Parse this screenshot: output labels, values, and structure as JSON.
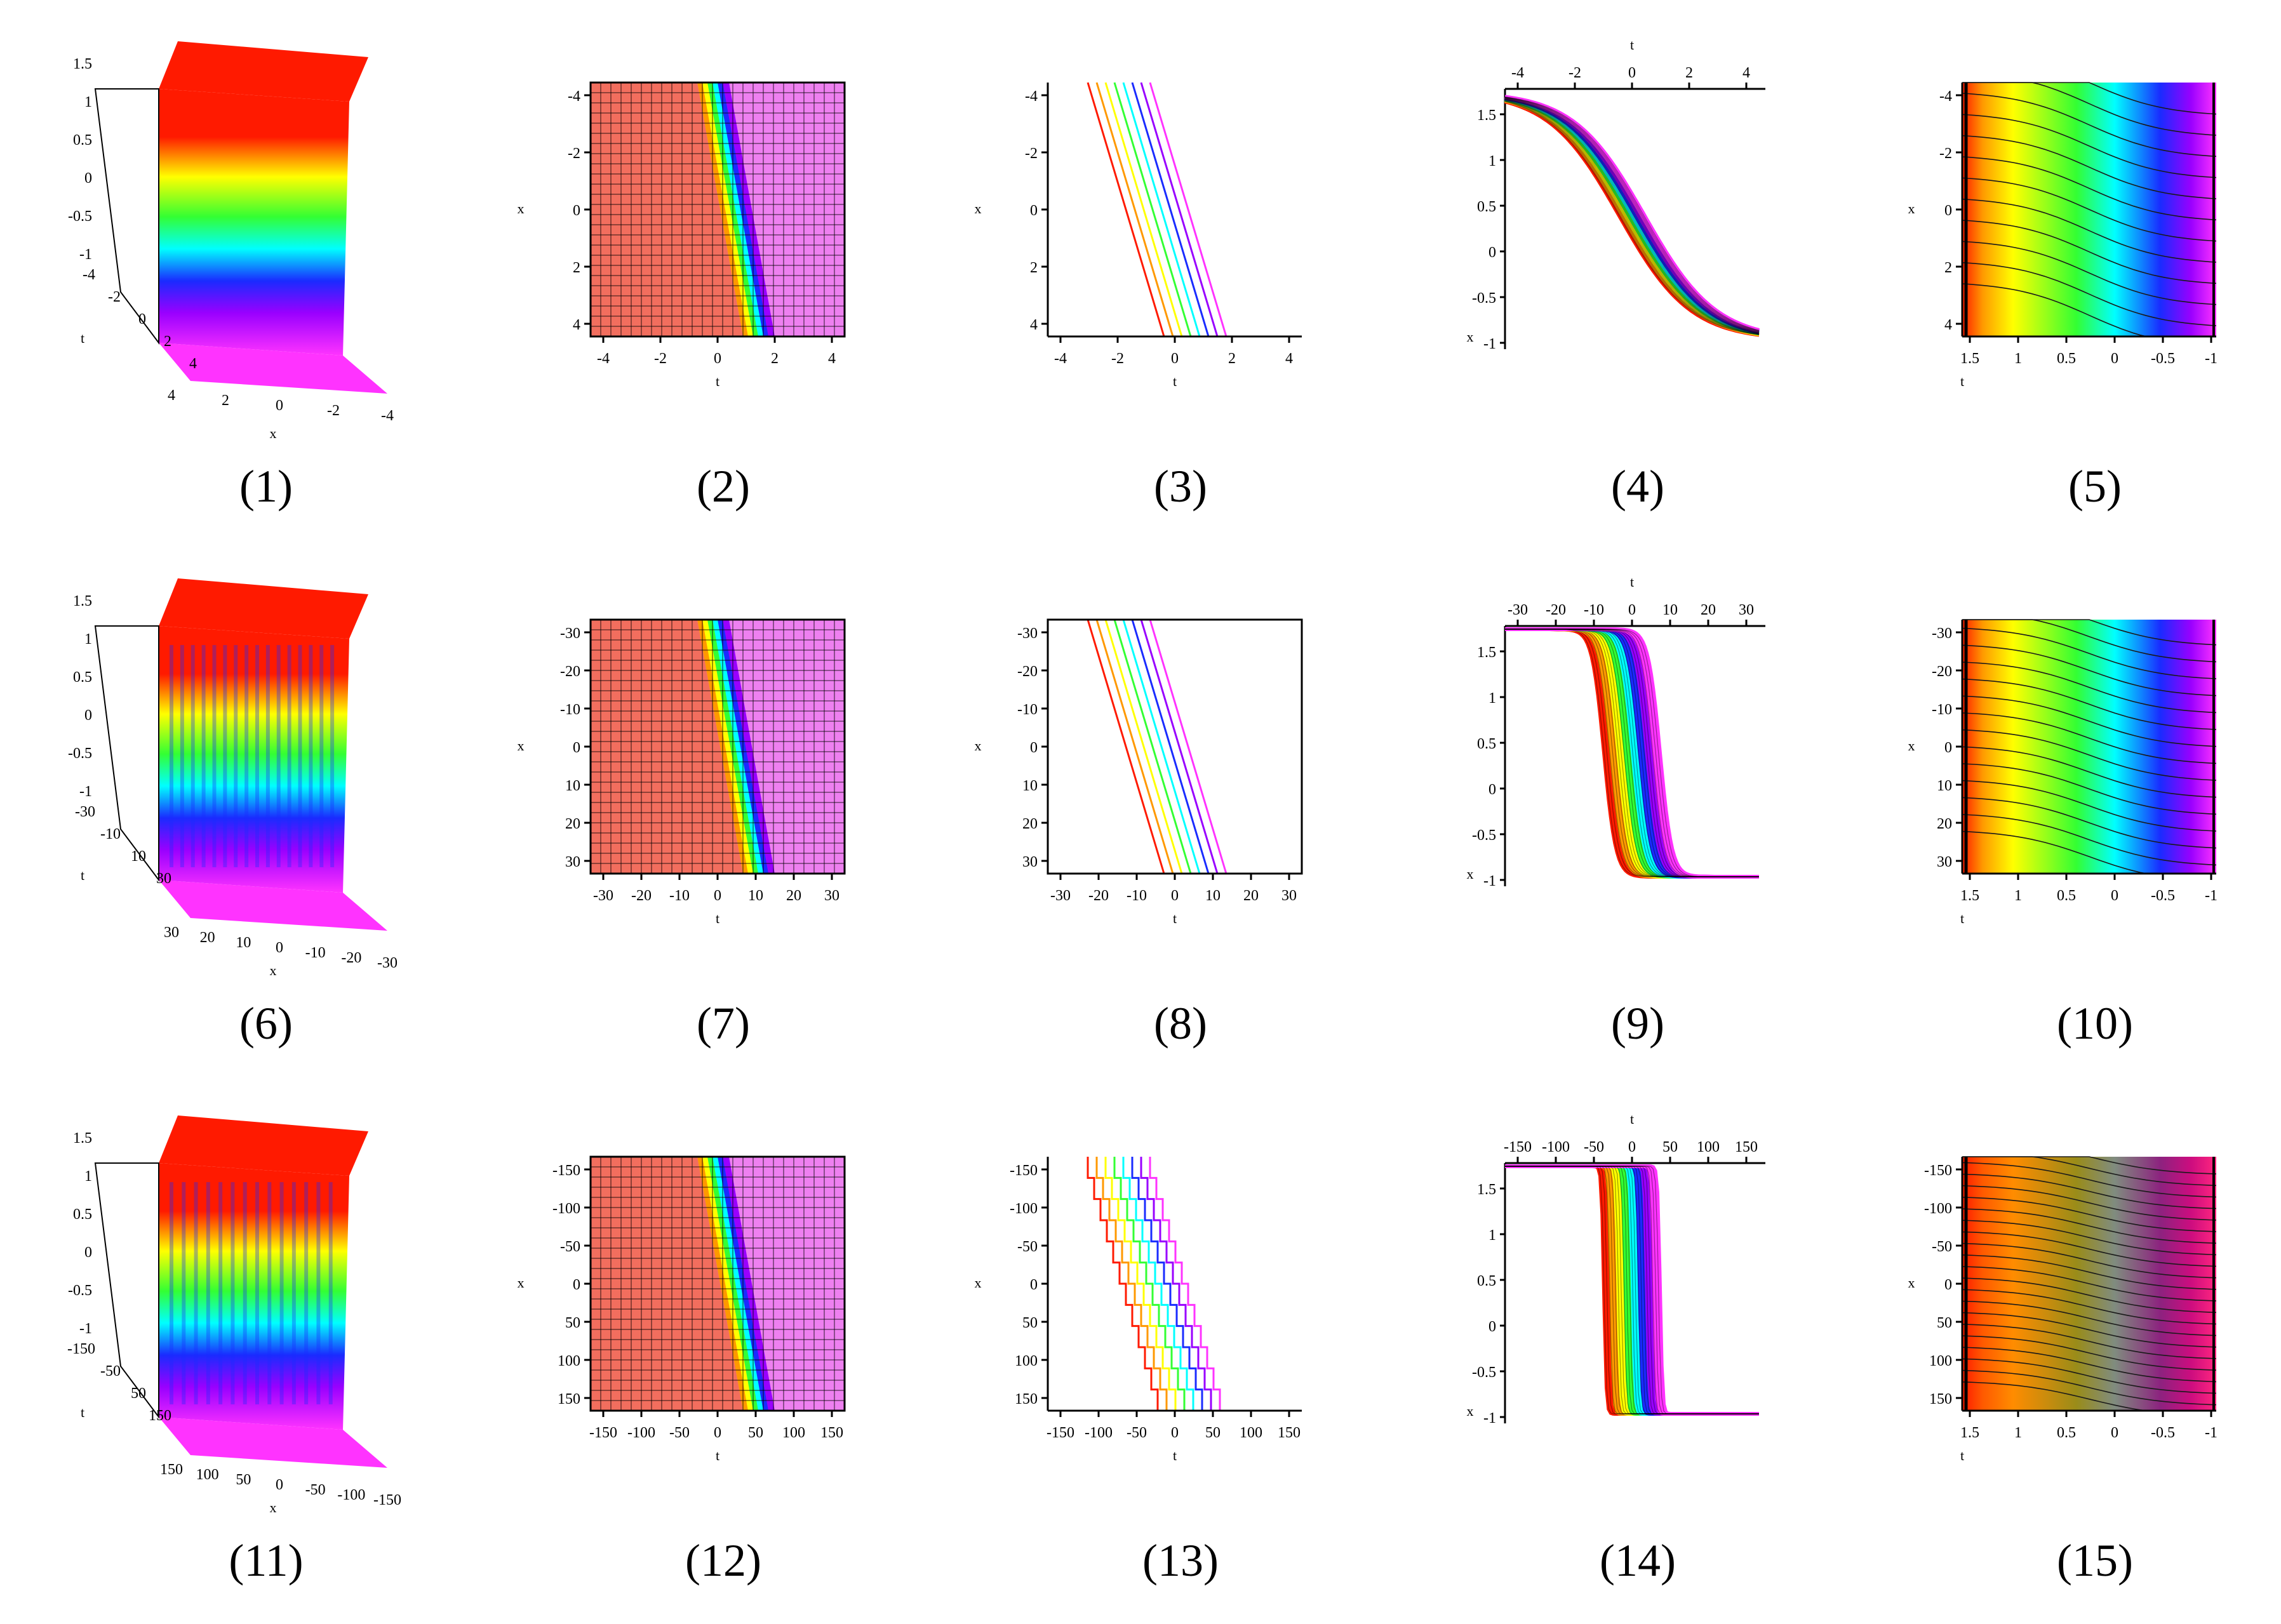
{
  "panels": [
    {
      "caption": "(1)",
      "type": "surface3d",
      "axis_name_a": "t",
      "axis_name_b": "x",
      "range": [
        -5,
        5
      ],
      "z_ticks": [
        "1.5",
        "1",
        "0.5",
        "0",
        "-0.5",
        "-1"
      ],
      "t_ticks": [
        "-4",
        "-2",
        "0",
        "2",
        "4"
      ],
      "x_ticks": [
        "4",
        "2",
        "0",
        "-2",
        "-4"
      ],
      "ripples": 0
    },
    {
      "caption": "(2)",
      "type": "density",
      "xlabel": "t",
      "ylabel": "x",
      "range": [
        -5,
        5
      ],
      "front_center": 0,
      "x_ticks": [
        "-4",
        "-2",
        "0",
        "2",
        "4"
      ],
      "y_ticks": [
        "-4",
        "-2",
        "0",
        "2",
        "4"
      ],
      "grid": true
    },
    {
      "caption": "(3)",
      "type": "contour",
      "xlabel": "t",
      "ylabel": "x",
      "range": [
        -5,
        5
      ],
      "front_center": 0,
      "x_ticks": [
        "-4",
        "-2",
        "0",
        "2",
        "4"
      ],
      "y_ticks": [
        "-4",
        "-2",
        "0",
        "2",
        "4"
      ],
      "frame": false
    },
    {
      "caption": "(4)",
      "type": "profile",
      "xlabel": "t",
      "ylabel": "x",
      "range": [
        -5,
        5
      ],
      "steepness": 1,
      "x_ticks": [
        "-4",
        "-2",
        "0",
        "2",
        "4"
      ],
      "y_ticks": [
        "1.5",
        "1",
        "0.5",
        "0",
        "-0.5",
        "-1"
      ]
    },
    {
      "caption": "(5)",
      "type": "phase",
      "xlabel": "t",
      "ylabel": "x",
      "range": [
        -5,
        5
      ],
      "band_count": 12,
      "x_ticks": [
        "1.5",
        "1",
        "0.5",
        "0",
        "-0.5",
        "-1"
      ],
      "y_ticks": [
        "-4",
        "-2",
        "0",
        "2",
        "4"
      ]
    },
    {
      "caption": "(6)",
      "type": "surface3d",
      "axis_name_a": "t",
      "axis_name_b": "x",
      "range": [
        -35,
        35
      ],
      "z_ticks": [
        "1.5",
        "1",
        "0.5",
        "0",
        "-0.5",
        "-1"
      ],
      "t_ticks": [
        "-30",
        "-10",
        "10",
        "30"
      ],
      "x_ticks": [
        "30",
        "20",
        "10",
        "0",
        "-10",
        "-20",
        "-30"
      ],
      "ripples": 16
    },
    {
      "caption": "(7)",
      "type": "density",
      "xlabel": "t",
      "ylabel": "x",
      "range": [
        -35,
        35
      ],
      "front_center": 0,
      "x_ticks": [
        "-30",
        "-20",
        "-10",
        "0",
        "10",
        "20",
        "30"
      ],
      "y_ticks": [
        "-30",
        "-20",
        "-10",
        "0",
        "10",
        "20",
        "30"
      ],
      "grid": true
    },
    {
      "caption": "(8)",
      "type": "contour",
      "xlabel": "t",
      "ylabel": "x",
      "range": [
        -35,
        35
      ],
      "front_center": 0,
      "x_ticks": [
        "-30",
        "-20",
        "-10",
        "0",
        "10",
        "20",
        "30"
      ],
      "y_ticks": [
        "-30",
        "-20",
        "-10",
        "0",
        "10",
        "20",
        "30"
      ],
      "frame": true
    },
    {
      "caption": "(9)",
      "type": "profile",
      "xlabel": "t",
      "ylabel": "x",
      "range": [
        -35,
        35
      ],
      "steepness": 6,
      "x_ticks": [
        "-30",
        "-20",
        "-10",
        "0",
        "10",
        "20",
        "30"
      ],
      "y_ticks": [
        "1.5",
        "1",
        "0.5",
        "0",
        "-0.5",
        "-1"
      ]
    },
    {
      "caption": "(10)",
      "type": "phase",
      "xlabel": "t",
      "ylabel": "x",
      "range": [
        -35,
        35
      ],
      "band_count": 15,
      "x_ticks": [
        "1.5",
        "1",
        "0.5",
        "0",
        "-0.5",
        "-1"
      ],
      "y_ticks": [
        "-30",
        "-20",
        "-10",
        "0",
        "10",
        "20",
        "30"
      ]
    },
    {
      "caption": "(11)",
      "type": "surface3d",
      "axis_name_a": "t",
      "axis_name_b": "x",
      "range": [
        -150,
        150
      ],
      "z_ticks": [
        "1.5",
        "1",
        "0.5",
        "0",
        "-0.5",
        "-1"
      ],
      "t_ticks": [
        "-150",
        "-50",
        "50",
        "150"
      ],
      "x_ticks": [
        "150",
        "100",
        "50",
        "0",
        "-50",
        "-100",
        "-150"
      ],
      "ripples": 14
    },
    {
      "caption": "(12)",
      "type": "density",
      "xlabel": "t",
      "ylabel": "x",
      "range": [
        -150,
        150
      ],
      "front_center": 0,
      "x_ticks": [
        "-150",
        "-100",
        "-50",
        "0",
        "50",
        "100",
        "150"
      ],
      "y_ticks": [
        "-150",
        "-100",
        "-50",
        "0",
        "50",
        "100",
        "150"
      ],
      "grid": true
    },
    {
      "caption": "(13)",
      "type": "contour",
      "xlabel": "t",
      "ylabel": "x",
      "range": [
        -150,
        150
      ],
      "front_center": 0,
      "x_ticks": [
        "-150",
        "-100",
        "-50",
        "0",
        "50",
        "100",
        "150"
      ],
      "y_ticks": [
        "-150",
        "-100",
        "-50",
        "0",
        "50",
        "100",
        "150"
      ],
      "frame": false,
      "stepped": true
    },
    {
      "caption": "(14)",
      "type": "profile",
      "xlabel": "t",
      "ylabel": "x",
      "range": [
        -150,
        150
      ],
      "steepness": 30,
      "x_ticks": [
        "-150",
        "-100",
        "-50",
        "0",
        "50",
        "100",
        "150"
      ],
      "y_ticks": [
        "1.5",
        "1",
        "0.5",
        "0",
        "-0.5",
        "-1"
      ]
    },
    {
      "caption": "(15)",
      "type": "phase",
      "xlabel": "t",
      "ylabel": "x",
      "range": [
        -150,
        150
      ],
      "band_count": 22,
      "x_ticks": [
        "1.5",
        "1",
        "0.5",
        "0",
        "-0.5",
        "-1"
      ],
      "y_ticks": [
        "-150",
        "-100",
        "-50",
        "0",
        "50",
        "100",
        "150"
      ]
    }
  ],
  "colors": {
    "red": "#ff1a00",
    "orange": "#ff9900",
    "yellow": "#ffff00",
    "green": "#33ff33",
    "cyan": "#00ffff",
    "blue": "#1a2bff",
    "purple": "#9900ff",
    "magenta": "#ff33ff",
    "salmon": "#f26e5e",
    "pink": "#ee80f0"
  }
}
